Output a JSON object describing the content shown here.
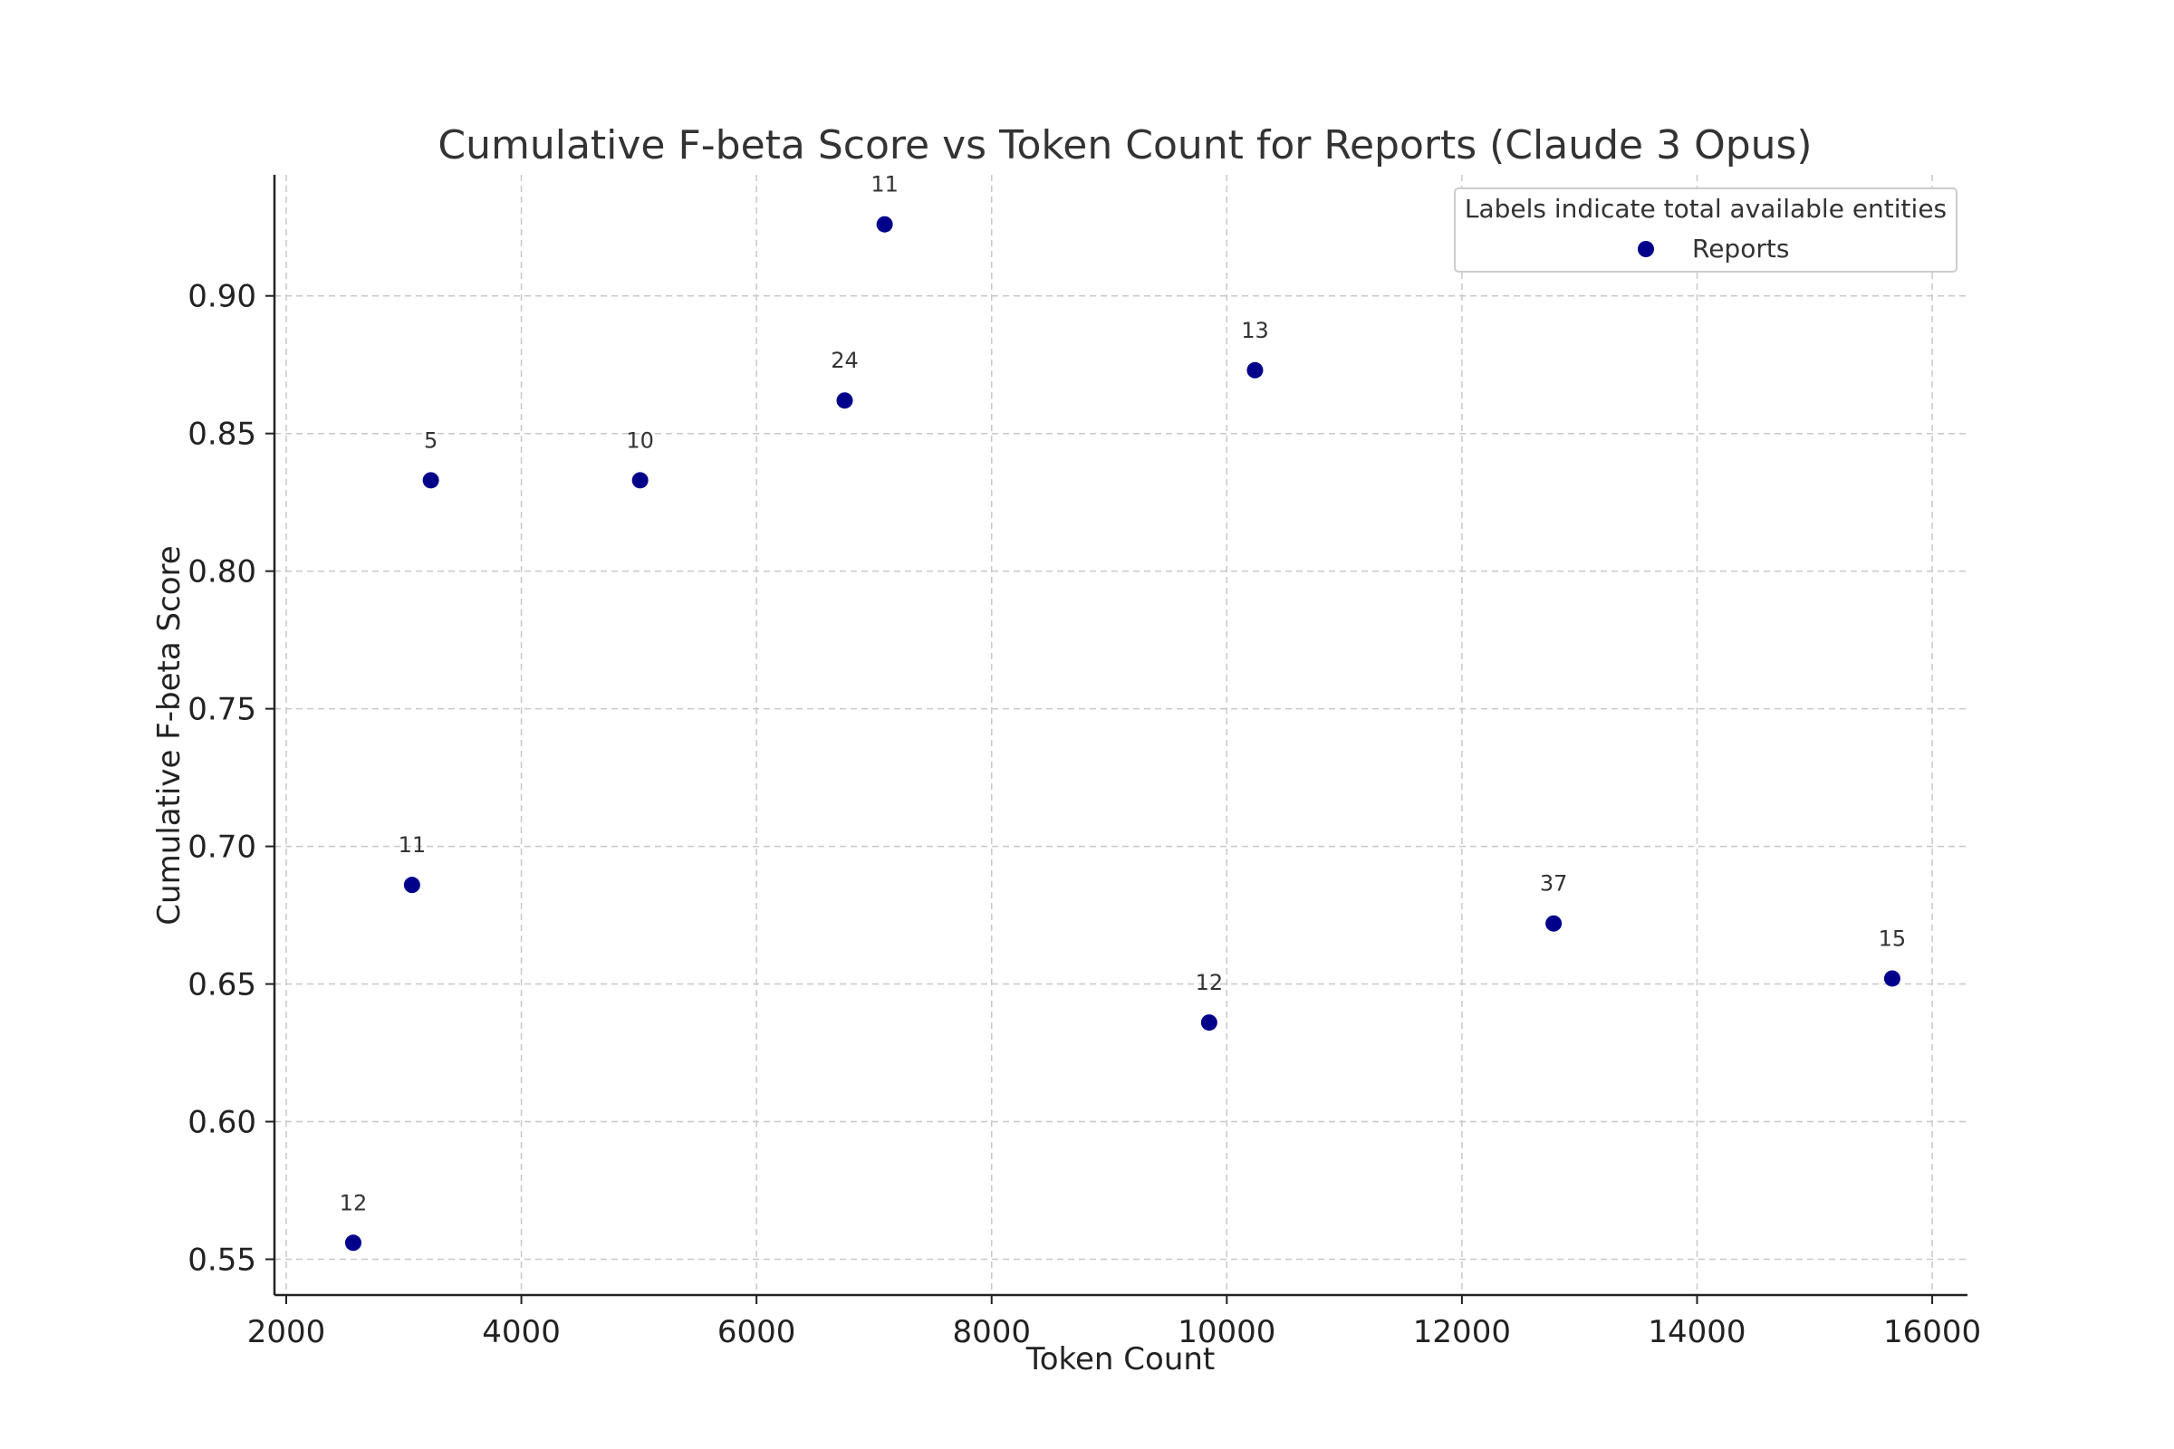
{
  "chart_data": {
    "type": "scatter",
    "title": "Cumulative F-beta Score vs Token Count for Reports (Claude 3 Opus)",
    "xlabel": "Token Count",
    "ylabel": "Cumulative F-beta Score",
    "xlim": [
      1900,
      16300
    ],
    "ylim": [
      0.537,
      0.944
    ],
    "xticks": [
      2000,
      4000,
      6000,
      8000,
      10000,
      12000,
      14000,
      16000
    ],
    "xtick_labels": [
      "2000",
      "4000",
      "6000",
      "8000",
      "10000",
      "12000",
      "14000",
      "16000"
    ],
    "yticks": [
      0.55,
      0.6,
      0.65,
      0.7,
      0.75,
      0.8,
      0.85,
      0.9
    ],
    "ytick_labels": [
      "0.55",
      "0.60",
      "0.65",
      "0.70",
      "0.75",
      "0.80",
      "0.85",
      "0.90"
    ],
    "grid": true,
    "legend": {
      "title": "Labels indicate total available entities",
      "placement": "top-right",
      "entries": [
        "Reports"
      ]
    },
    "series": [
      {
        "name": "Reports",
        "color": "#00008b",
        "x": [
          2570,
          3070,
          3230,
          5010,
          6750,
          7090,
          9850,
          10240,
          12780,
          15660
        ],
        "y": [
          0.556,
          0.686,
          0.833,
          0.833,
          0.862,
          0.926,
          0.636,
          0.873,
          0.672,
          0.652
        ],
        "labels": [
          "12",
          "11",
          "5",
          "10",
          "24",
          "11",
          "12",
          "13",
          "37",
          "15"
        ]
      }
    ]
  }
}
